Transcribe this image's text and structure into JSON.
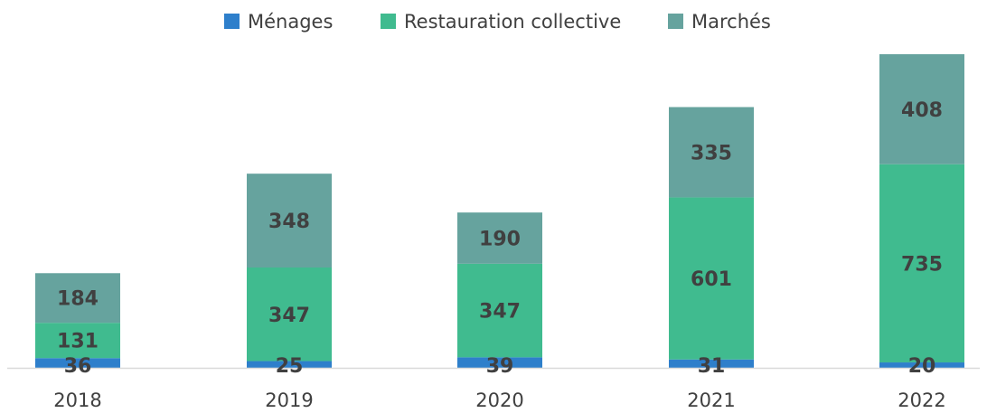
{
  "chart_data": {
    "type": "bar",
    "stacked": true,
    "categories": [
      "2018",
      "2019",
      "2020",
      "2021",
      "2022"
    ],
    "series": [
      {
        "name": "Ménages",
        "color": "#2e7fcb",
        "values": [
          36,
          25,
          39,
          31,
          20
        ]
      },
      {
        "name": "Restauration collective",
        "color": "#40bb8f",
        "values": [
          131,
          347,
          347,
          601,
          735
        ]
      },
      {
        "name": "Marchés",
        "color": "#66a39e",
        "values": [
          184,
          348,
          190,
          335,
          408
        ]
      }
    ],
    "title": "",
    "xlabel": "",
    "ylabel": "",
    "ylim": [
      0,
      1163
    ],
    "grid": false,
    "legend": "top-center",
    "axis_line_color": "#d9d9d9"
  }
}
